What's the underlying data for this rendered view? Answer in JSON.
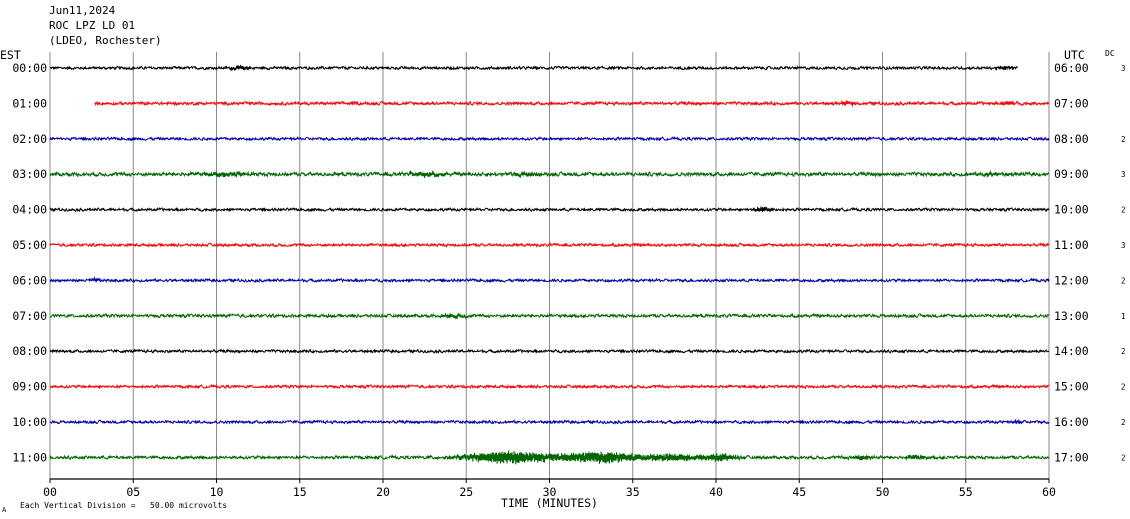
{
  "header": {
    "date": "Jun11,2024",
    "station": "ROC LPZ LD 01",
    "network": "(LDEO, Rochester)"
  },
  "left_axis_title": "EST",
  "right_axis_title": "UTC",
  "dc_title": "DC",
  "footer": {
    "scale_note": "Each Vertical Division =   50.00 microvolts",
    "corner_mark": "A"
  },
  "chart_data": {
    "type": "line",
    "title": "",
    "xlabel": "TIME (MINUTES)",
    "ylabel": "",
    "xlim": [
      0,
      60
    ],
    "x_ticks": [
      "00",
      "05",
      "10",
      "15",
      "20",
      "25",
      "30",
      "35",
      "40",
      "45",
      "50",
      "55",
      "60"
    ],
    "grid": true,
    "rows": [
      {
        "est": "00:00",
        "utc": "06:00",
        "dc": "3",
        "color": "#000000",
        "start_min": 0,
        "end_min": 58.1,
        "noise": 1.0,
        "events": [
          {
            "t": 11.5,
            "amp": 2.2,
            "width": 0.6
          },
          {
            "t": 57.3,
            "amp": 1.8,
            "width": 0.4
          }
        ]
      },
      {
        "est": "01:00",
        "utc": "07:00",
        "dc": "",
        "color": "#ff0000",
        "start_min": 2.7,
        "end_min": 60,
        "noise": 1.1,
        "events": [
          {
            "t": 48,
            "amp": 1.8,
            "width": 0.5
          },
          {
            "t": 57.5,
            "amp": 1.6,
            "width": 0.5
          }
        ]
      },
      {
        "est": "02:00",
        "utc": "08:00",
        "dc": "2",
        "color": "#0000aa",
        "start_min": 0,
        "end_min": 60,
        "noise": 1.0,
        "events": []
      },
      {
        "est": "03:00",
        "utc": "09:00",
        "dc": "3",
        "color": "#006600",
        "start_min": 0,
        "end_min": 60,
        "noise": 1.3,
        "events": [
          {
            "t": 10.5,
            "amp": 2.0,
            "width": 1.5
          },
          {
            "t": 22.5,
            "amp": 2.6,
            "width": 1.0
          },
          {
            "t": 28.5,
            "amp": 2.0,
            "width": 0.8
          },
          {
            "t": 56.5,
            "amp": 1.8,
            "width": 0.5
          }
        ]
      },
      {
        "est": "04:00",
        "utc": "10:00",
        "dc": "2",
        "color": "#000000",
        "start_min": 0,
        "end_min": 60,
        "noise": 1.0,
        "events": [
          {
            "t": 42.8,
            "amp": 2.2,
            "width": 0.6
          }
        ]
      },
      {
        "est": "05:00",
        "utc": "11:00",
        "dc": "3",
        "color": "#ff0000",
        "start_min": 0,
        "end_min": 60,
        "noise": 1.0,
        "events": []
      },
      {
        "est": "06:00",
        "utc": "12:00",
        "dc": "2",
        "color": "#0000aa",
        "start_min": 0,
        "end_min": 60,
        "noise": 1.0,
        "events": [
          {
            "t": 2.8,
            "amp": 1.8,
            "width": 0.4
          }
        ]
      },
      {
        "est": "07:00",
        "utc": "13:00",
        "dc": "1",
        "color": "#006600",
        "start_min": 0,
        "end_min": 60,
        "noise": 1.1,
        "events": [
          {
            "t": 24.2,
            "amp": 2.2,
            "width": 0.8
          }
        ]
      },
      {
        "est": "08:00",
        "utc": "14:00",
        "dc": "2",
        "color": "#000000",
        "start_min": 0,
        "end_min": 60,
        "noise": 1.0,
        "events": []
      },
      {
        "est": "09:00",
        "utc": "15:00",
        "dc": "2",
        "color": "#ff0000",
        "start_min": 0,
        "end_min": 60,
        "noise": 1.0,
        "events": []
      },
      {
        "est": "10:00",
        "utc": "16:00",
        "dc": "2",
        "color": "#0000aa",
        "start_min": 0,
        "end_min": 60,
        "noise": 1.0,
        "events": [
          {
            "t": 58,
            "amp": 1.6,
            "width": 0.4
          }
        ]
      },
      {
        "est": "11:00",
        "utc": "17:00",
        "dc": "2",
        "color": "#006600",
        "start_min": 0,
        "end_min": 60,
        "noise": 1.1,
        "events": [
          {
            "t": 27.5,
            "amp": 6.5,
            "width": 2.6
          },
          {
            "t": 33,
            "amp": 6.0,
            "width": 2.4
          },
          {
            "t": 37.5,
            "amp": 3.6,
            "width": 1.6
          },
          {
            "t": 40.2,
            "amp": 4.0,
            "width": 1.0
          },
          {
            "t": 48.8,
            "amp": 2.6,
            "width": 0.6
          },
          {
            "t": 52,
            "amp": 2.2,
            "width": 0.6
          }
        ]
      }
    ]
  }
}
